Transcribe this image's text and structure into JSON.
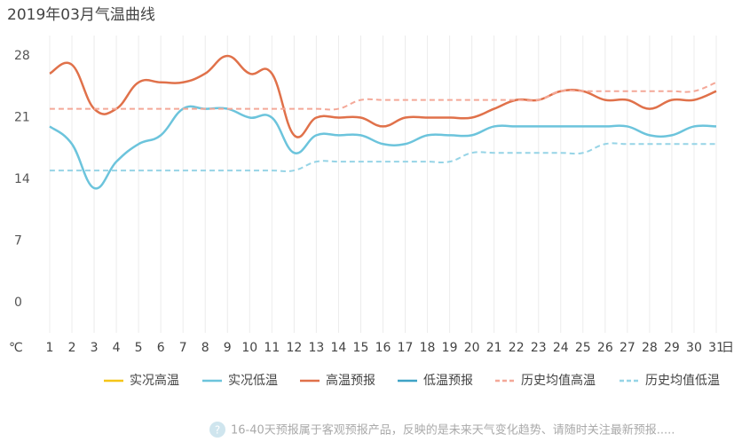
{
  "chart_data": {
    "type": "line",
    "title": "2019年03月气温曲线",
    "y_unit": "℃",
    "x_unit": "日",
    "categories": [
      "1",
      "2",
      "3",
      "4",
      "5",
      "6",
      "7",
      "8",
      "9",
      "10",
      "11",
      "12",
      "13",
      "14",
      "15",
      "16",
      "17",
      "18",
      "19",
      "20",
      "21",
      "22",
      "23",
      "24",
      "25",
      "26",
      "27",
      "28",
      "29",
      "30",
      "31"
    ],
    "ylim": [
      0,
      28
    ],
    "yticks": [
      0,
      7,
      14,
      21,
      28
    ],
    "grid": "vertical",
    "legend": "bottom",
    "series": [
      {
        "name": "实况高温",
        "color": "#f5c518",
        "dashed": false,
        "values": [
          null,
          null,
          null,
          null,
          null,
          null,
          null,
          null,
          null,
          null,
          null,
          null,
          null,
          null,
          null,
          null,
          null,
          null,
          null,
          null,
          null,
          null,
          null,
          null,
          null,
          null,
          null,
          null,
          null,
          null,
          null
        ]
      },
      {
        "name": "实况低温",
        "color": "#6cc4dc",
        "dashed": false,
        "values": [
          20,
          18,
          13,
          16,
          18,
          19,
          22,
          22,
          22,
          21,
          21,
          17,
          19,
          19,
          19,
          18,
          18,
          19,
          19,
          19,
          20,
          20,
          20,
          20,
          20,
          20,
          20,
          19,
          19,
          20,
          20
        ]
      },
      {
        "name": "高温预报",
        "color": "#e0714a",
        "dashed": false,
        "values": [
          26,
          27,
          22,
          22,
          25,
          25,
          25,
          26,
          28,
          26,
          26,
          19,
          21,
          21,
          21,
          20,
          21,
          21,
          21,
          21,
          22,
          23,
          23,
          24,
          24,
          23,
          23,
          22,
          23,
          23,
          24
        ]
      },
      {
        "name": "低温预报",
        "color": "#3ea3c6",
        "dashed": false,
        "values": [
          null,
          null,
          null,
          null,
          null,
          null,
          null,
          null,
          null,
          null,
          null,
          null,
          null,
          null,
          null,
          null,
          null,
          null,
          null,
          null,
          null,
          null,
          null,
          null,
          null,
          null,
          null,
          null,
          null,
          null,
          null
        ]
      },
      {
        "name": "历史均值高温",
        "color": "#f4a898",
        "dashed": true,
        "values": [
          22,
          22,
          22,
          22,
          22,
          22,
          22,
          22,
          22,
          22,
          22,
          22,
          22,
          22,
          23,
          23,
          23,
          23,
          23,
          23,
          23,
          23,
          23,
          24,
          24,
          24,
          24,
          24,
          24,
          24,
          25
        ]
      },
      {
        "name": "历史均值低温",
        "color": "#96d4e6",
        "dashed": true,
        "values": [
          15,
          15,
          15,
          15,
          15,
          15,
          15,
          15,
          15,
          15,
          15,
          15,
          16,
          16,
          16,
          16,
          16,
          16,
          16,
          17,
          17,
          17,
          17,
          17,
          17,
          18,
          18,
          18,
          18,
          18,
          18
        ]
      }
    ],
    "note": "16-40天预报属于客观预报产品，反映的是未来天气变化趋势、请随时关注最新预报....."
  }
}
